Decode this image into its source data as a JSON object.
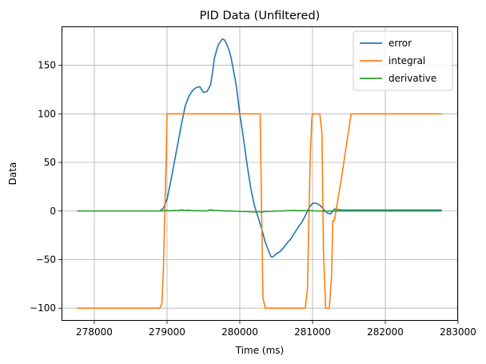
{
  "chart_data": {
    "type": "line",
    "title": "PID Data (Unfiltered)",
    "xlabel": "Time (ms)",
    "ylabel": "Data",
    "xlim": [
      277550,
      283000
    ],
    "ylim": [
      -113,
      190
    ],
    "xticks": [
      278000,
      279000,
      280000,
      281000,
      282000,
      283000
    ],
    "yticks": [
      -100,
      -50,
      0,
      50,
      100,
      150
    ],
    "grid": true,
    "legend_position": "top-right",
    "series": [
      {
        "name": "error",
        "color": "#1f77b4",
        "x": [
          277770,
          278000,
          278500,
          278900,
          278950,
          279000,
          279050,
          279100,
          279150,
          279200,
          279250,
          279300,
          279350,
          279400,
          279450,
          279500,
          279550,
          279600,
          279630,
          279650,
          279680,
          279700,
          279730,
          279760,
          279790,
          279820,
          279850,
          279880,
          279900,
          279950,
          280000,
          280050,
          280100,
          280150,
          280200,
          280250,
          280300,
          280350,
          280400,
          280430,
          280460,
          280500,
          280550,
          280600,
          280650,
          280700,
          280750,
          280800,
          280850,
          280900,
          280950,
          281000,
          281050,
          281100,
          281150,
          281200,
          281250,
          281300,
          281400,
          282000,
          282770
        ],
        "y": [
          0,
          0,
          0,
          0,
          3,
          12,
          30,
          50,
          70,
          90,
          108,
          118,
          124,
          127,
          128,
          122,
          123,
          130,
          145,
          157,
          165,
          170,
          174,
          177,
          176,
          172,
          166,
          158,
          150,
          130,
          100,
          75,
          48,
          24,
          6,
          -6,
          -18,
          -32,
          -42,
          -47,
          -47,
          -44,
          -42,
          -38,
          -33,
          -29,
          -23,
          -17,
          -12,
          -5,
          3,
          8,
          8,
          6,
          2,
          -2,
          -3,
          2,
          1,
          1,
          1
        ]
      },
      {
        "name": "integral",
        "color": "#ff7f0e",
        "x": [
          277770,
          278500,
          278900,
          278930,
          278950,
          278970,
          278990,
          279000,
          279200,
          280000,
          280280,
          280300,
          280310,
          280320,
          280350,
          280400,
          280600,
          280900,
          280930,
          280950,
          280970,
          280990,
          281000,
          281050,
          281080,
          281100,
          281130,
          281150,
          281180,
          281200,
          281230,
          281260,
          281280,
          281300,
          281400,
          281450,
          281500,
          281530,
          281600,
          282000,
          282770
        ],
        "y": [
          -100,
          -100,
          -100,
          -95,
          -60,
          0,
          60,
          100,
          100,
          100,
          100,
          0,
          -50,
          -90,
          -100,
          -100,
          -100,
          -100,
          -80,
          -10,
          60,
          95,
          100,
          100,
          100,
          100,
          80,
          -40,
          -100,
          -100,
          -100,
          -70,
          -10,
          -10,
          35,
          60,
          85,
          100,
          100,
          100,
          100
        ]
      },
      {
        "name": "derivative",
        "color": "#2ca02c",
        "x": [
          277770,
          278500,
          278900,
          278950,
          279000,
          279050,
          279100,
          279150,
          279200,
          279250,
          279300,
          279350,
          279400,
          279450,
          279500,
          279550,
          279600,
          279650,
          279700,
          279750,
          279800,
          279850,
          279900,
          279950,
          280000,
          280050,
          280100,
          280150,
          280200,
          280230,
          280260,
          280300,
          280350,
          280400,
          280450,
          280500,
          280550,
          280600,
          280650,
          280700,
          280750,
          280800,
          280850,
          280900,
          280950,
          281000,
          281050,
          281100,
          281150,
          281200,
          281250,
          281300,
          281350,
          281400,
          282000,
          282770
        ],
        "y": [
          0,
          0,
          0,
          0.3,
          0.5,
          0.3,
          0.6,
          0.4,
          1.2,
          0.6,
          0.8,
          0.3,
          0.5,
          0.2,
          0.4,
          0.1,
          1.3,
          0.6,
          0.5,
          0.3,
          0.1,
          0.2,
          0,
          -0.3,
          -0.4,
          -0.5,
          -0.6,
          -0.8,
          -0.9,
          -1.4,
          -0.6,
          -1.2,
          -0.4,
          -0.5,
          -0.3,
          0,
          0.1,
          0.2,
          0.4,
          0.4,
          0.6,
          0.4,
          0.5,
          0.4,
          0.5,
          0.3,
          0.2,
          0,
          -0.3,
          -0.2,
          0.1,
          0.2,
          0.1,
          0.1,
          0.1,
          0.1
        ]
      }
    ]
  }
}
